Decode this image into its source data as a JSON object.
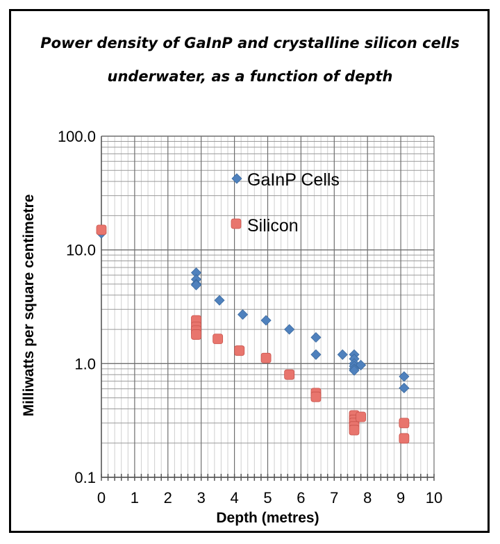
{
  "chart_data": {
    "type": "scatter",
    "title_line1": "Power density of GaInP and crystalline silicon cells",
    "title_line2": "underwater, as a function of depth",
    "xlabel": "Depth (metres)",
    "ylabel": "Milliwatts per square centimetre",
    "xlim": [
      0,
      10
    ],
    "ylim": [
      0.1,
      100
    ],
    "y_scale": "log",
    "x_ticks": [
      0,
      1,
      2,
      3,
      4,
      5,
      6,
      7,
      8,
      9,
      10
    ],
    "x_tick_labels": [
      "0",
      "1",
      "2",
      "3",
      "4",
      "5",
      "6",
      "7",
      "8",
      "9",
      "10"
    ],
    "y_ticks": [
      0.1,
      1,
      10,
      100
    ],
    "y_tick_labels": [
      "0.1",
      "1.0",
      "10.0",
      "100.0"
    ],
    "grid": true,
    "legend_position": "upper-middle",
    "series": [
      {
        "name": "GaInP Cells",
        "marker": "diamond",
        "color": "#4f81bd",
        "points": [
          [
            0,
            14.0
          ],
          [
            2.85,
            6.3
          ],
          [
            2.85,
            5.5
          ],
          [
            2.85,
            5.0
          ],
          [
            2.85,
            4.9
          ],
          [
            3.55,
            3.6
          ],
          [
            4.25,
            2.7
          ],
          [
            4.95,
            2.4
          ],
          [
            5.65,
            2.0
          ],
          [
            6.45,
            1.7
          ],
          [
            6.45,
            1.2
          ],
          [
            7.25,
            1.2
          ],
          [
            7.6,
            1.2
          ],
          [
            7.6,
            1.1
          ],
          [
            7.6,
            1.0
          ],
          [
            7.6,
            0.95
          ],
          [
            7.6,
            0.9
          ],
          [
            7.6,
            0.87
          ],
          [
            7.8,
            0.97
          ],
          [
            9.1,
            0.77
          ],
          [
            9.1,
            0.61
          ]
        ]
      },
      {
        "name": "Silicon",
        "marker": "square",
        "color": "#e8756d",
        "points": [
          [
            0,
            15.0
          ],
          [
            2.85,
            2.4
          ],
          [
            2.85,
            2.1
          ],
          [
            2.85,
            1.95
          ],
          [
            2.85,
            1.8
          ],
          [
            3.5,
            1.65
          ],
          [
            4.15,
            1.3
          ],
          [
            4.95,
            1.12
          ],
          [
            5.65,
            0.8
          ],
          [
            6.45,
            0.55
          ],
          [
            6.45,
            0.51
          ],
          [
            7.6,
            0.35
          ],
          [
            7.6,
            0.32
          ],
          [
            7.6,
            0.3
          ],
          [
            7.6,
            0.28
          ],
          [
            7.6,
            0.26
          ],
          [
            7.8,
            0.34
          ],
          [
            9.1,
            0.3
          ],
          [
            9.1,
            0.22
          ]
        ]
      }
    ]
  }
}
